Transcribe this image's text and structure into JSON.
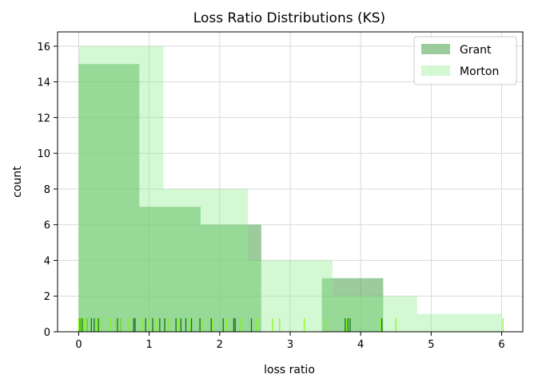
{
  "chart_data": {
    "type": "histogram",
    "title": "Loss Ratio Distributions (KS)",
    "xlabel": "loss ratio",
    "ylabel": "count",
    "xlim": [
      -0.3,
      6.3
    ],
    "ylim": [
      0,
      16.8
    ],
    "xticks": [
      0,
      1,
      2,
      3,
      4,
      5,
      6
    ],
    "yticks": [
      0,
      2,
      4,
      6,
      8,
      10,
      12,
      14,
      16
    ],
    "grid": true,
    "legend_position": "top-right",
    "series": [
      {
        "name": "Grant",
        "color": "#5aa85a",
        "opacity": 0.6,
        "bins": [
          {
            "x0": 0.0,
            "x1": 0.86,
            "count": 15
          },
          {
            "x0": 0.86,
            "x1": 1.73,
            "count": 7
          },
          {
            "x0": 1.73,
            "x1": 2.59,
            "count": 6
          },
          {
            "x0": 2.59,
            "x1": 3.45,
            "count": 0
          },
          {
            "x0": 3.45,
            "x1": 4.32,
            "count": 3
          }
        ],
        "rug": [
          0.02,
          0.05,
          0.12,
          0.18,
          0.22,
          0.28,
          0.55,
          0.6,
          0.78,
          0.8,
          0.95,
          1.05,
          1.15,
          1.22,
          1.38,
          1.45,
          1.52,
          1.6,
          1.72,
          1.88,
          2.05,
          2.2,
          2.22,
          2.45,
          3.78,
          3.82,
          3.85,
          4.3
        ]
      },
      {
        "name": "Morton",
        "color": "#90ee90",
        "opacity": 0.4,
        "bins": [
          {
            "x0": 0.0,
            "x1": 1.2,
            "count": 16
          },
          {
            "x0": 1.2,
            "x1": 2.4,
            "count": 8
          },
          {
            "x0": 2.4,
            "x1": 3.6,
            "count": 4
          },
          {
            "x0": 3.6,
            "x1": 4.8,
            "count": 2
          },
          {
            "x0": 4.8,
            "x1": 6.0,
            "count": 1
          }
        ],
        "rug": [
          0.0,
          0.03,
          0.08,
          0.12,
          0.25,
          0.32,
          0.45,
          0.52,
          0.6,
          0.7,
          0.9,
          1.0,
          1.1,
          1.28,
          1.42,
          1.58,
          1.75,
          1.9,
          2.1,
          2.3,
          2.52,
          2.75,
          2.85,
          3.2,
          3.5,
          3.8,
          4.28,
          4.5,
          6.02
        ]
      }
    ]
  }
}
